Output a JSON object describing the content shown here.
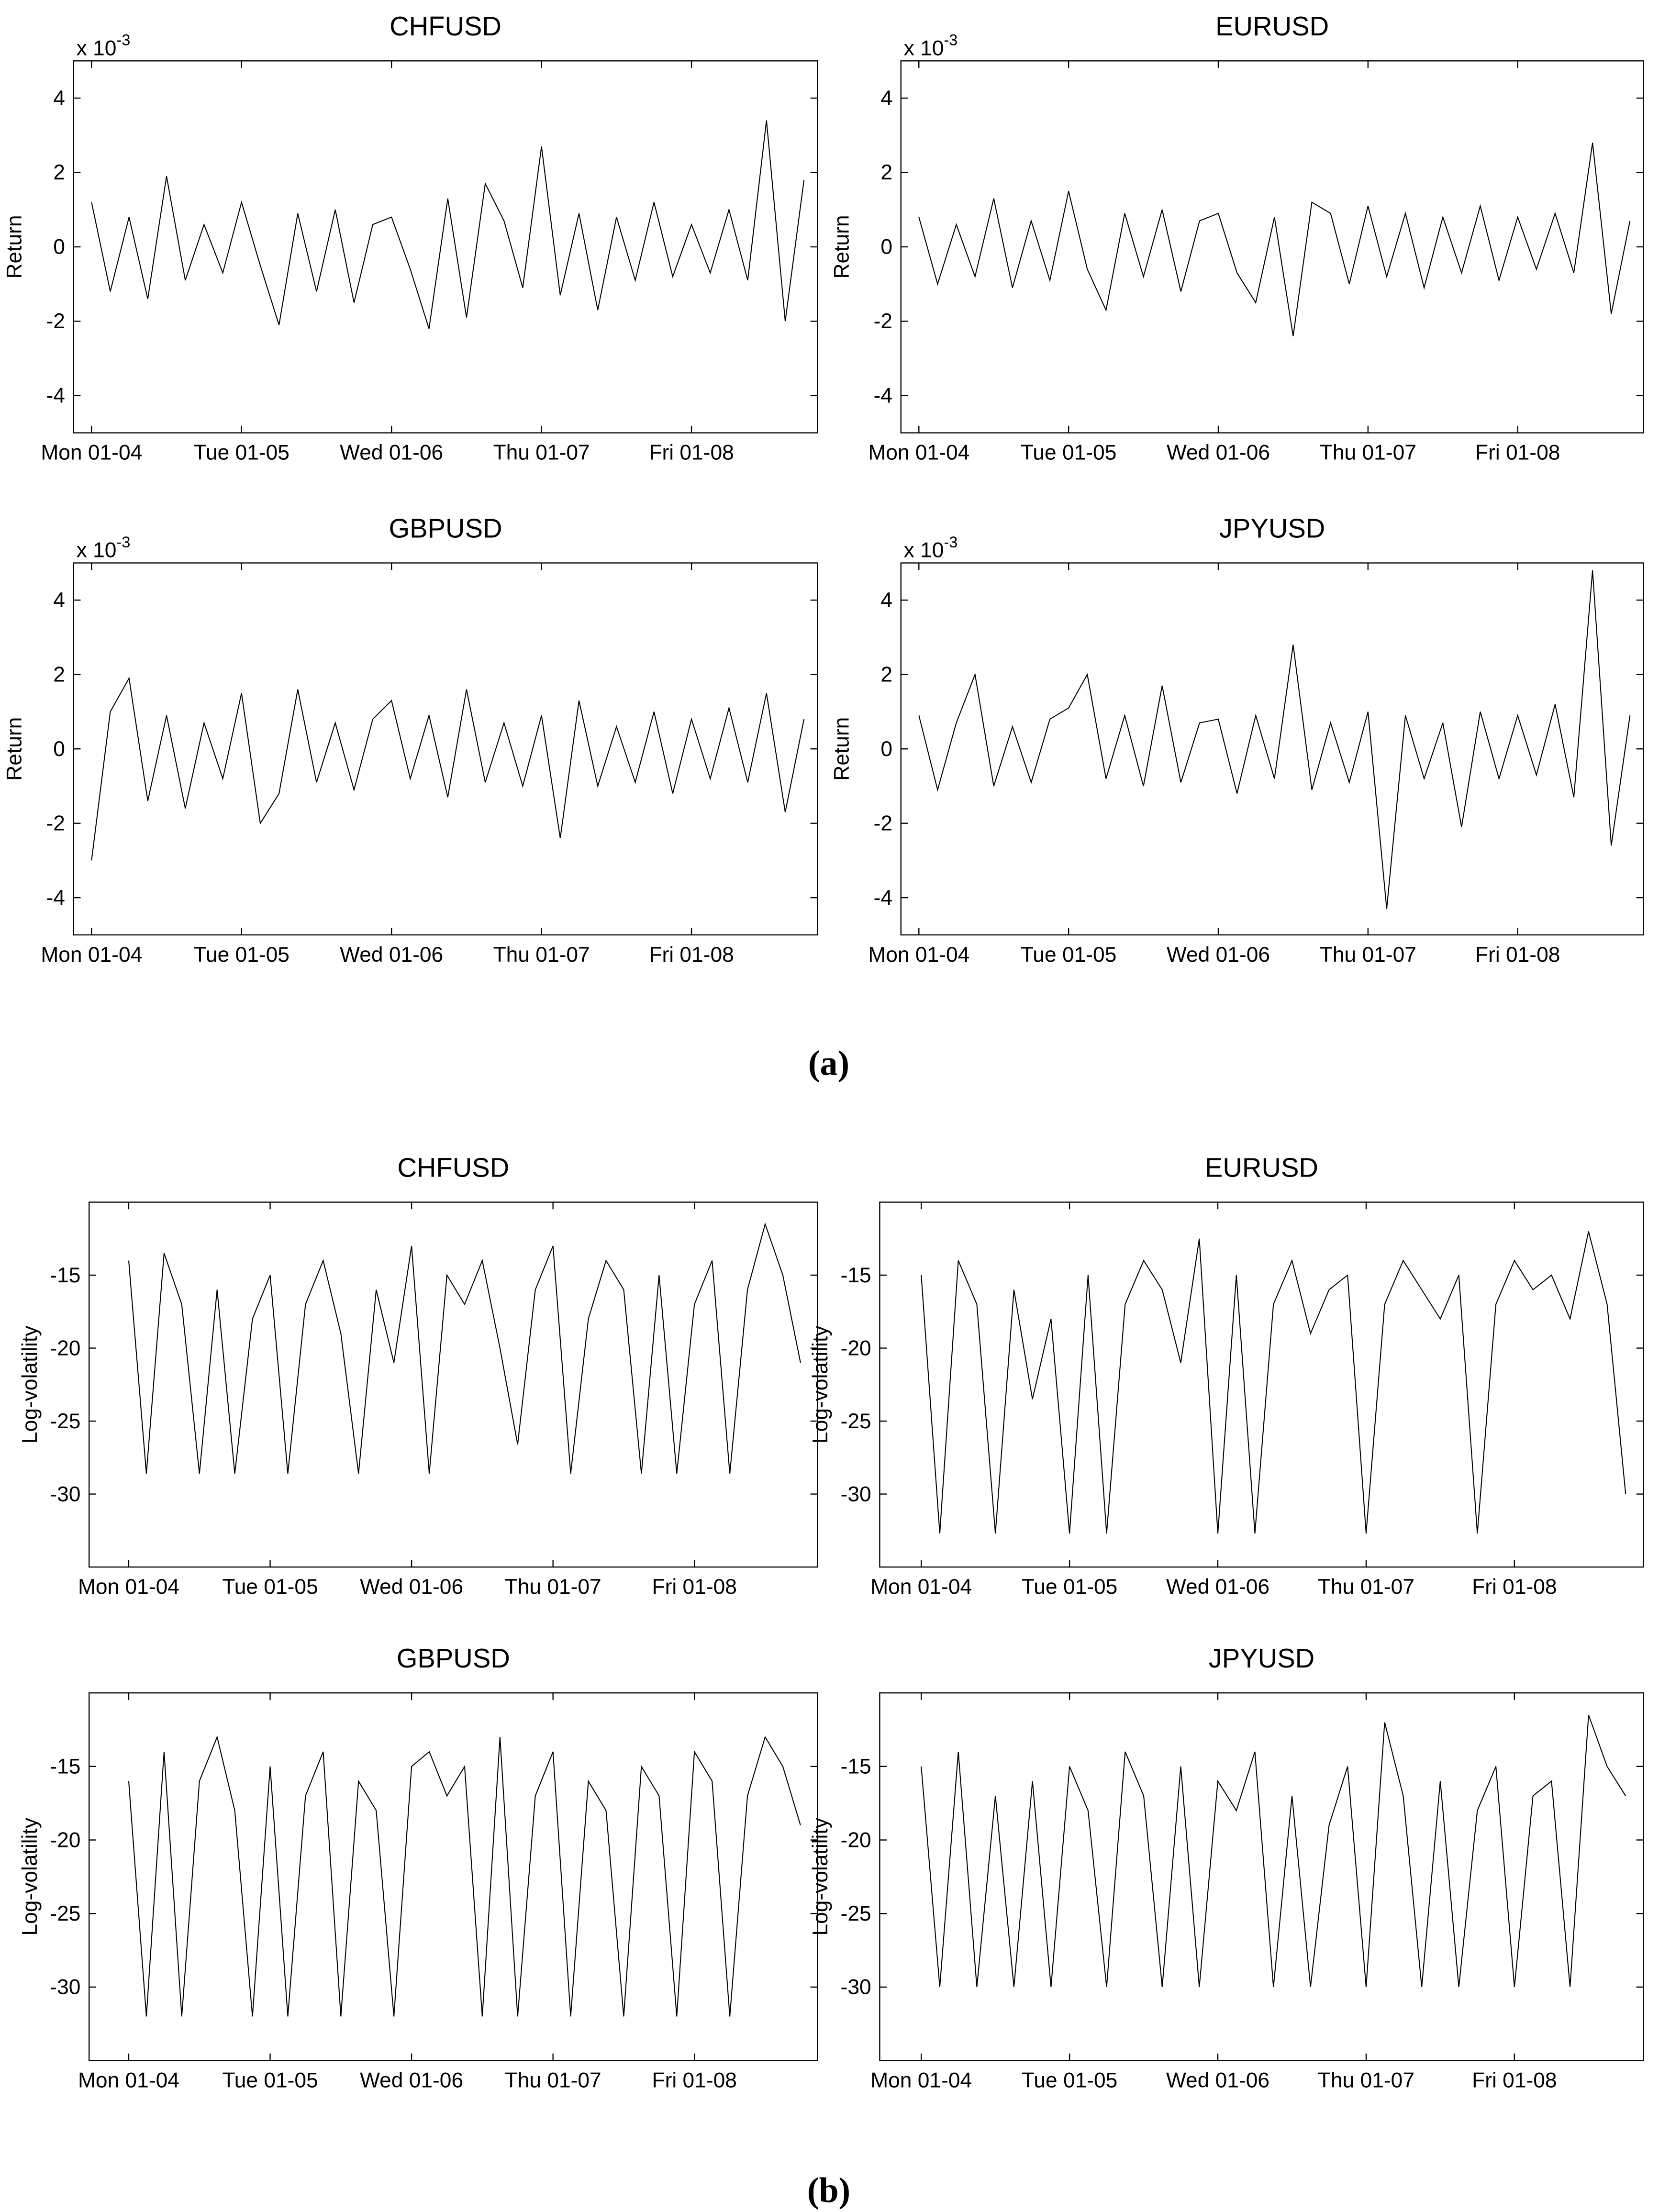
{
  "panel_labels": [
    "(a)",
    "(b)"
  ],
  "chart_data": [
    {
      "type": "line",
      "title": "CHFUSD",
      "ylabel": "Return",
      "y_multiplier": {
        "base": "x 10",
        "exponent": "-3"
      },
      "x": [
        0,
        0.125,
        0.25,
        0.375,
        0.5,
        0.625,
        0.75,
        0.875,
        1,
        1.125,
        1.25,
        1.375,
        1.5,
        1.625,
        1.75,
        1.875,
        2,
        2.125,
        2.25,
        2.375,
        2.5,
        2.625,
        2.75,
        2.875,
        3,
        3.125,
        3.25,
        3.375,
        3.5,
        3.625,
        3.75,
        3.875,
        4,
        4.125,
        4.25,
        4.375,
        4.5,
        4.625,
        4.75
      ],
      "values": [
        1.2,
        -1.2,
        0.8,
        -1.4,
        1.9,
        -0.9,
        0.6,
        -0.7,
        1.2,
        -0.5,
        -2.1,
        0.9,
        -1.2,
        1.0,
        -1.5,
        0.6,
        0.8,
        -0.6,
        -2.2,
        1.3,
        -1.9,
        1.7,
        0.7,
        -1.1,
        2.7,
        -1.3,
        0.9,
        -1.7,
        0.8,
        -0.9,
        1.2,
        -0.8,
        0.6,
        -0.7,
        1.0,
        -0.9,
        3.4,
        -2.0,
        1.8
      ],
      "color": "#000000",
      "xlim": [
        -0.12,
        4.84
      ],
      "xticks": [
        {
          "value": 0,
          "label": "Mon 01-04"
        },
        {
          "value": 1,
          "label": "Tue 01-05"
        },
        {
          "value": 2,
          "label": "Wed 01-06"
        },
        {
          "value": 3,
          "label": "Thu 01-07"
        },
        {
          "value": 4,
          "label": "Fri 01-08"
        }
      ],
      "ylim": [
        -5,
        5
      ],
      "yticks": [
        -4,
        -2,
        0,
        2,
        4
      ]
    },
    {
      "type": "line",
      "title": "EURUSD",
      "ylabel": "Return",
      "y_multiplier": {
        "base": "x 10",
        "exponent": "-3"
      },
      "x": [
        0,
        0.125,
        0.25,
        0.375,
        0.5,
        0.625,
        0.75,
        0.875,
        1,
        1.125,
        1.25,
        1.375,
        1.5,
        1.625,
        1.75,
        1.875,
        2,
        2.125,
        2.25,
        2.375,
        2.5,
        2.625,
        2.75,
        2.875,
        3,
        3.125,
        3.25,
        3.375,
        3.5,
        3.625,
        3.75,
        3.875,
        4,
        4.125,
        4.25,
        4.375,
        4.5,
        4.625,
        4.75
      ],
      "values": [
        0.8,
        -1.0,
        0.6,
        -0.8,
        1.3,
        -1.1,
        0.7,
        -0.9,
        1.5,
        -0.6,
        -1.7,
        0.9,
        -0.8,
        1.0,
        -1.2,
        0.7,
        0.9,
        -0.7,
        -1.5,
        0.8,
        -2.4,
        1.2,
        0.9,
        -1.0,
        1.1,
        -0.8,
        0.9,
        -1.1,
        0.8,
        -0.7,
        1.1,
        -0.9,
        0.8,
        -0.6,
        0.9,
        -0.7,
        2.8,
        -1.8,
        0.7
      ],
      "color": "#000000",
      "xlim": [
        -0.12,
        4.84
      ],
      "xticks": [
        {
          "value": 0,
          "label": "Mon 01-04"
        },
        {
          "value": 1,
          "label": "Tue 01-05"
        },
        {
          "value": 2,
          "label": "Wed 01-06"
        },
        {
          "value": 3,
          "label": "Thu 01-07"
        },
        {
          "value": 4,
          "label": "Fri 01-08"
        }
      ],
      "ylim": [
        -5,
        5
      ],
      "yticks": [
        -4,
        -2,
        0,
        2,
        4
      ]
    },
    {
      "type": "line",
      "title": "GBPUSD",
      "ylabel": "Return",
      "y_multiplier": {
        "base": "x 10",
        "exponent": "-3"
      },
      "x": [
        0,
        0.125,
        0.25,
        0.375,
        0.5,
        0.625,
        0.75,
        0.875,
        1,
        1.125,
        1.25,
        1.375,
        1.5,
        1.625,
        1.75,
        1.875,
        2,
        2.125,
        2.25,
        2.375,
        2.5,
        2.625,
        2.75,
        2.875,
        3,
        3.125,
        3.25,
        3.375,
        3.5,
        3.625,
        3.75,
        3.875,
        4,
        4.125,
        4.25,
        4.375,
        4.5,
        4.625,
        4.75
      ],
      "values": [
        -3.0,
        1.0,
        1.9,
        -1.4,
        0.9,
        -1.6,
        0.7,
        -0.8,
        1.5,
        -2.0,
        -1.2,
        1.6,
        -0.9,
        0.7,
        -1.1,
        0.8,
        1.3,
        -0.8,
        0.9,
        -1.3,
        1.6,
        -0.9,
        0.7,
        -1.0,
        0.9,
        -2.4,
        1.3,
        -1.0,
        0.6,
        -0.9,
        1.0,
        -1.2,
        0.8,
        -0.8,
        1.1,
        -0.9,
        1.5,
        -1.7,
        0.8
      ],
      "color": "#000000",
      "xlim": [
        -0.12,
        4.84
      ],
      "xticks": [
        {
          "value": 0,
          "label": "Mon 01-04"
        },
        {
          "value": 1,
          "label": "Tue 01-05"
        },
        {
          "value": 2,
          "label": "Wed 01-06"
        },
        {
          "value": 3,
          "label": "Thu 01-07"
        },
        {
          "value": 4,
          "label": "Fri 01-08"
        }
      ],
      "ylim": [
        -5,
        5
      ],
      "yticks": [
        -4,
        -2,
        0,
        2,
        4
      ]
    },
    {
      "type": "line",
      "title": "JPYUSD",
      "ylabel": "Return",
      "y_multiplier": {
        "base": "x 10",
        "exponent": "-3"
      },
      "x": [
        0,
        0.125,
        0.25,
        0.375,
        0.5,
        0.625,
        0.75,
        0.875,
        1,
        1.125,
        1.25,
        1.375,
        1.5,
        1.625,
        1.75,
        1.875,
        2,
        2.125,
        2.25,
        2.375,
        2.5,
        2.625,
        2.75,
        2.875,
        3,
        3.125,
        3.25,
        3.375,
        3.5,
        3.625,
        3.75,
        3.875,
        4,
        4.125,
        4.25,
        4.375,
        4.5,
        4.625,
        4.75
      ],
      "values": [
        0.9,
        -1.1,
        0.7,
        2.0,
        -1.0,
        0.6,
        -0.9,
        0.8,
        1.1,
        2.0,
        -0.8,
        0.9,
        -1.0,
        1.7,
        -0.9,
        0.7,
        0.8,
        -1.2,
        0.9,
        -0.8,
        2.8,
        -1.1,
        0.7,
        -0.9,
        1.0,
        -4.3,
        0.9,
        -0.8,
        0.7,
        -2.1,
        1.0,
        -0.8,
        0.9,
        -0.7,
        1.2,
        -1.3,
        4.8,
        -2.6,
        0.9
      ],
      "color": "#000000",
      "xlim": [
        -0.12,
        4.84
      ],
      "xticks": [
        {
          "value": 0,
          "label": "Mon 01-04"
        },
        {
          "value": 1,
          "label": "Tue 01-05"
        },
        {
          "value": 2,
          "label": "Wed 01-06"
        },
        {
          "value": 3,
          "label": "Thu 01-07"
        },
        {
          "value": 4,
          "label": "Fri 01-08"
        }
      ],
      "ylim": [
        -5,
        5
      ],
      "yticks": [
        -4,
        -2,
        0,
        2,
        4
      ]
    },
    {
      "type": "line",
      "title": "CHFUSD",
      "ylabel": "Log-volatility",
      "x": [
        0,
        0.125,
        0.25,
        0.375,
        0.5,
        0.625,
        0.75,
        0.875,
        1,
        1.125,
        1.25,
        1.375,
        1.5,
        1.625,
        1.75,
        1.875,
        2,
        2.125,
        2.25,
        2.375,
        2.5,
        2.625,
        2.75,
        2.875,
        3,
        3.125,
        3.25,
        3.375,
        3.5,
        3.625,
        3.75,
        3.875,
        4,
        4.125,
        4.25,
        4.375,
        4.5,
        4.625,
        4.75
      ],
      "values": [
        -14,
        -28.6,
        -13.5,
        -17,
        -28.6,
        -16,
        -28.6,
        -18,
        -15,
        -28.6,
        -17,
        -14,
        -19,
        -28.6,
        -16,
        -21,
        -13,
        -28.6,
        -15,
        -17,
        -14,
        -20,
        -26.6,
        -16,
        -13,
        -28.6,
        -18,
        -14,
        -16,
        -28.6,
        -15,
        -28.6,
        -17,
        -14,
        -28.6,
        -16,
        -11.5,
        -15,
        -21
      ],
      "color": "#000000",
      "xlim": [
        -0.28,
        4.87
      ],
      "xticks": [
        {
          "value": 0,
          "label": "Mon 01-04"
        },
        {
          "value": 1,
          "label": "Tue 01-05"
        },
        {
          "value": 2,
          "label": "Wed 01-06"
        },
        {
          "value": 3,
          "label": "Thu 01-07"
        },
        {
          "value": 4,
          "label": "Fri 01-08"
        }
      ],
      "ylim": [
        -35,
        -10
      ],
      "yticks": [
        -30,
        -25,
        -20,
        -15
      ]
    },
    {
      "type": "line",
      "title": "EURUSD",
      "ylabel": "Log-volatility",
      "x": [
        0,
        0.125,
        0.25,
        0.375,
        0.5,
        0.625,
        0.75,
        0.875,
        1,
        1.125,
        1.25,
        1.375,
        1.5,
        1.625,
        1.75,
        1.875,
        2,
        2.125,
        2.25,
        2.375,
        2.5,
        2.625,
        2.75,
        2.875,
        3,
        3.125,
        3.25,
        3.375,
        3.5,
        3.625,
        3.75,
        3.875,
        4,
        4.125,
        4.25,
        4.375,
        4.5,
        4.625,
        4.75
      ],
      "values": [
        -15,
        -32.7,
        -14,
        -17,
        -32.7,
        -16,
        -23.5,
        -18,
        -32.7,
        -15,
        -32.7,
        -17,
        -14,
        -16,
        -21,
        -12.5,
        -32.7,
        -15,
        -32.7,
        -17,
        -14,
        -19,
        -16,
        -15,
        -32.7,
        -17,
        -14,
        -16,
        -18,
        -15,
        -32.7,
        -17,
        -14,
        -16,
        -15,
        -18,
        -12,
        -17,
        -30
      ],
      "color": "#000000",
      "xlim": [
        -0.28,
        4.87
      ],
      "xticks": [
        {
          "value": 0,
          "label": "Mon 01-04"
        },
        {
          "value": 1,
          "label": "Tue 01-05"
        },
        {
          "value": 2,
          "label": "Wed 01-06"
        },
        {
          "value": 3,
          "label": "Thu 01-07"
        },
        {
          "value": 4,
          "label": "Fri 01-08"
        }
      ],
      "ylim": [
        -35,
        -10
      ],
      "yticks": [
        -30,
        -25,
        -20,
        -15
      ]
    },
    {
      "type": "line",
      "title": "GBPUSD",
      "ylabel": "Log-volatility",
      "x": [
        0,
        0.125,
        0.25,
        0.375,
        0.5,
        0.625,
        0.75,
        0.875,
        1,
        1.125,
        1.25,
        1.375,
        1.5,
        1.625,
        1.75,
        1.875,
        2,
        2.125,
        2.25,
        2.375,
        2.5,
        2.625,
        2.75,
        2.875,
        3,
        3.125,
        3.25,
        3.375,
        3.5,
        3.625,
        3.75,
        3.875,
        4,
        4.125,
        4.25,
        4.375,
        4.5,
        4.625,
        4.75
      ],
      "values": [
        -16,
        -32,
        -14,
        -32,
        -16,
        -13,
        -18,
        -32,
        -15,
        -32,
        -17,
        -14,
        -32,
        -16,
        -18,
        -32,
        -15,
        -14,
        -17,
        -15,
        -32,
        -13,
        -32,
        -17,
        -14,
        -32,
        -16,
        -18,
        -32,
        -15,
        -17,
        -32,
        -14,
        -16,
        -32,
        -17,
        -13,
        -15,
        -19
      ],
      "color": "#000000",
      "xlim": [
        -0.28,
        4.87
      ],
      "xticks": [
        {
          "value": 0,
          "label": "Mon 01-04"
        },
        {
          "value": 1,
          "label": "Tue 01-05"
        },
        {
          "value": 2,
          "label": "Wed 01-06"
        },
        {
          "value": 3,
          "label": "Thu 01-07"
        },
        {
          "value": 4,
          "label": "Fri 01-08"
        }
      ],
      "ylim": [
        -35,
        -10
      ],
      "yticks": [
        -30,
        -25,
        -20,
        -15
      ]
    },
    {
      "type": "line",
      "title": "JPYUSD",
      "ylabel": "Log-volatility",
      "x": [
        0,
        0.125,
        0.25,
        0.375,
        0.5,
        0.625,
        0.75,
        0.875,
        1,
        1.125,
        1.25,
        1.375,
        1.5,
        1.625,
        1.75,
        1.875,
        2,
        2.125,
        2.25,
        2.375,
        2.5,
        2.625,
        2.75,
        2.875,
        3,
        3.125,
        3.25,
        3.375,
        3.5,
        3.625,
        3.75,
        3.875,
        4,
        4.125,
        4.25,
        4.375,
        4.5,
        4.625,
        4.75
      ],
      "values": [
        -15,
        -30,
        -14,
        -30,
        -17,
        -30,
        -16,
        -30,
        -15,
        -18,
        -30,
        -14,
        -17,
        -30,
        -15,
        -30,
        -16,
        -18,
        -14,
        -30,
        -17,
        -30,
        -19,
        -15,
        -30,
        -12,
        -17,
        -30,
        -16,
        -30,
        -18,
        -15,
        -30,
        -17,
        -16,
        -30,
        -11.5,
        -15,
        -17
      ],
      "color": "#000000",
      "xlim": [
        -0.28,
        4.87
      ],
      "xticks": [
        {
          "value": 0,
          "label": "Mon 01-04"
        },
        {
          "value": 1,
          "label": "Tue 01-05"
        },
        {
          "value": 2,
          "label": "Wed 01-06"
        },
        {
          "value": 3,
          "label": "Thu 01-07"
        },
        {
          "value": 4,
          "label": "Fri 01-08"
        }
      ],
      "ylim": [
        -35,
        -10
      ],
      "yticks": [
        -30,
        -25,
        -20,
        -15
      ]
    }
  ]
}
